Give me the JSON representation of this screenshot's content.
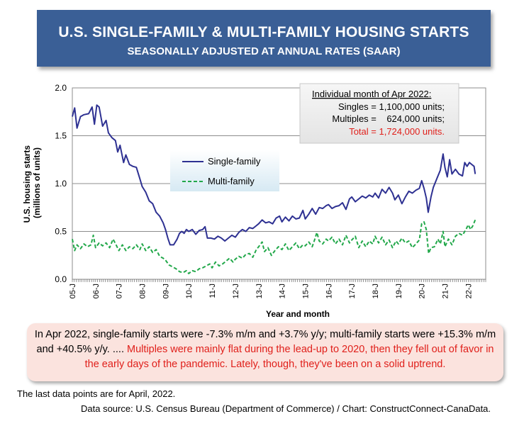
{
  "header": {
    "title": "U.S. SINGLE-FAMILY & MULTI-FAMILY HOUSING STARTS",
    "subtitle": "SEASONALLY ADJUSTED AT ANNUAL RATES (SAAR)"
  },
  "info_box": {
    "heading": "Individual month of Apr 2022:",
    "singles": "Singles = 1,100,000 units;",
    "multiples": "Multiples =    624,000 units;",
    "total": "Total = 1,724,000 units."
  },
  "note": {
    "black": "In Apr 2022, single-family starts were -7.3% m/m and +3.7% y/y; multi-family starts were +15.3% m/m and +40.5% y/y. ....",
    "red": "Multiples were mainly flat during the lead-up to 2020, then they fell out of favor in the early days of the pandemic. Lately, though, they've been on a solid uptrend."
  },
  "footer": {
    "last_points": "The last data points are for April, 2022.",
    "source": "Data source: U.S. Census Bureau (Department of Commerce) / Chart: ConstructConnect-CanaData."
  },
  "colors": {
    "title_bg": "#3a5f96",
    "single": "#2e3192",
    "multi": "#22a84a",
    "note_bg": "#fbe3de",
    "red": "#e0201b"
  },
  "chart_data": {
    "type": "line",
    "xlabel": "Year and month",
    "ylabel": "U.S. housing starts (millions of units)",
    "ylim": [
      0,
      2.0
    ],
    "yticks": [
      "0.0",
      "0.5",
      "1.0",
      "1.5",
      "2.0"
    ],
    "xticks": [
      "05-J",
      "06-J",
      "07-J",
      "08-J",
      "09-J",
      "10-J",
      "11-J",
      "12-J",
      "13-J",
      "14-J",
      "15-J",
      "16-J",
      "17-J",
      "18-J",
      "19-J",
      "20-J",
      "21-J",
      "22-J"
    ],
    "grid": true,
    "legend_position": "center-left",
    "series": [
      {
        "name": "Single-family",
        "style": "solid",
        "points": [
          [
            2005.0,
            1.7
          ],
          [
            2005.1,
            1.79
          ],
          [
            2005.2,
            1.58
          ],
          [
            2005.35,
            1.7
          ],
          [
            2005.5,
            1.72
          ],
          [
            2005.7,
            1.73
          ],
          [
            2005.85,
            1.8
          ],
          [
            2005.95,
            1.62
          ],
          [
            2006.05,
            1.82
          ],
          [
            2006.15,
            1.8
          ],
          [
            2006.3,
            1.6
          ],
          [
            2006.45,
            1.66
          ],
          [
            2006.55,
            1.53
          ],
          [
            2006.7,
            1.48
          ],
          [
            2006.85,
            1.45
          ],
          [
            2006.95,
            1.33
          ],
          [
            2007.05,
            1.4
          ],
          [
            2007.2,
            1.22
          ],
          [
            2007.3,
            1.3
          ],
          [
            2007.45,
            1.2
          ],
          [
            2007.6,
            1.18
          ],
          [
            2007.75,
            1.17
          ],
          [
            2007.9,
            1.05
          ],
          [
            2008.0,
            0.97
          ],
          [
            2008.15,
            0.91
          ],
          [
            2008.3,
            0.82
          ],
          [
            2008.45,
            0.79
          ],
          [
            2008.6,
            0.7
          ],
          [
            2008.75,
            0.66
          ],
          [
            2008.9,
            0.59
          ],
          [
            2009.0,
            0.52
          ],
          [
            2009.1,
            0.43
          ],
          [
            2009.2,
            0.36
          ],
          [
            2009.35,
            0.36
          ],
          [
            2009.5,
            0.42
          ],
          [
            2009.6,
            0.48
          ],
          [
            2009.7,
            0.5
          ],
          [
            2009.8,
            0.48
          ],
          [
            2009.9,
            0.52
          ],
          [
            2010.0,
            0.5
          ],
          [
            2010.15,
            0.52
          ],
          [
            2010.3,
            0.47
          ],
          [
            2010.45,
            0.51
          ],
          [
            2010.6,
            0.52
          ],
          [
            2010.7,
            0.55
          ],
          [
            2010.8,
            0.43
          ],
          [
            2010.95,
            0.43
          ],
          [
            2011.1,
            0.42
          ],
          [
            2011.25,
            0.45
          ],
          [
            2011.4,
            0.43
          ],
          [
            2011.55,
            0.4
          ],
          [
            2011.7,
            0.43
          ],
          [
            2011.85,
            0.46
          ],
          [
            2012.0,
            0.44
          ],
          [
            2012.15,
            0.49
          ],
          [
            2012.3,
            0.52
          ],
          [
            2012.45,
            0.5
          ],
          [
            2012.6,
            0.54
          ],
          [
            2012.75,
            0.53
          ],
          [
            2012.9,
            0.56
          ],
          [
            2013.0,
            0.58
          ],
          [
            2013.15,
            0.62
          ],
          [
            2013.3,
            0.59
          ],
          [
            2013.45,
            0.6
          ],
          [
            2013.6,
            0.58
          ],
          [
            2013.75,
            0.64
          ],
          [
            2013.9,
            0.66
          ],
          [
            2014.0,
            0.6
          ],
          [
            2014.15,
            0.65
          ],
          [
            2014.3,
            0.61
          ],
          [
            2014.45,
            0.66
          ],
          [
            2014.6,
            0.63
          ],
          [
            2014.75,
            0.64
          ],
          [
            2014.9,
            0.72
          ],
          [
            2015.0,
            0.63
          ],
          [
            2015.15,
            0.68
          ],
          [
            2015.3,
            0.74
          ],
          [
            2015.45,
            0.68
          ],
          [
            2015.6,
            0.75
          ],
          [
            2015.75,
            0.74
          ],
          [
            2015.9,
            0.77
          ],
          [
            2016.0,
            0.78
          ],
          [
            2016.15,
            0.74
          ],
          [
            2016.3,
            0.76
          ],
          [
            2016.45,
            0.77
          ],
          [
            2016.6,
            0.8
          ],
          [
            2016.75,
            0.73
          ],
          [
            2016.9,
            0.84
          ],
          [
            2017.0,
            0.86
          ],
          [
            2017.15,
            0.81
          ],
          [
            2017.3,
            0.84
          ],
          [
            2017.45,
            0.87
          ],
          [
            2017.6,
            0.85
          ],
          [
            2017.75,
            0.88
          ],
          [
            2017.9,
            0.86
          ],
          [
            2018.0,
            0.9
          ],
          [
            2018.15,
            0.85
          ],
          [
            2018.3,
            0.94
          ],
          [
            2018.45,
            0.9
          ],
          [
            2018.6,
            0.96
          ],
          [
            2018.75,
            0.9
          ],
          [
            2018.85,
            0.83
          ],
          [
            2019.0,
            0.88
          ],
          [
            2019.15,
            0.79
          ],
          [
            2019.3,
            0.86
          ],
          [
            2019.45,
            0.92
          ],
          [
            2019.6,
            0.9
          ],
          [
            2019.75,
            0.93
          ],
          [
            2019.9,
            0.95
          ],
          [
            2020.0,
            1.03
          ],
          [
            2020.1,
            0.95
          ],
          [
            2020.2,
            0.85
          ],
          [
            2020.28,
            0.7
          ],
          [
            2020.4,
            0.86
          ],
          [
            2020.5,
            0.96
          ],
          [
            2020.65,
            1.05
          ],
          [
            2020.8,
            1.14
          ],
          [
            2020.92,
            1.31
          ],
          [
            2021.0,
            1.17
          ],
          [
            2021.1,
            1.07
          ],
          [
            2021.2,
            1.25
          ],
          [
            2021.3,
            1.1
          ],
          [
            2021.45,
            1.15
          ],
          [
            2021.6,
            1.1
          ],
          [
            2021.75,
            1.08
          ],
          [
            2021.85,
            1.22
          ],
          [
            2021.95,
            1.18
          ],
          [
            2022.05,
            1.22
          ],
          [
            2022.15,
            1.2
          ],
          [
            2022.25,
            1.18
          ],
          [
            2022.3,
            1.1
          ]
        ]
      },
      {
        "name": "Multi-family",
        "style": "dashed",
        "points": [
          [
            2005.0,
            0.42
          ],
          [
            2005.1,
            0.3
          ],
          [
            2005.2,
            0.36
          ],
          [
            2005.35,
            0.32
          ],
          [
            2005.5,
            0.37
          ],
          [
            2005.65,
            0.34
          ],
          [
            2005.8,
            0.36
          ],
          [
            2005.9,
            0.46
          ],
          [
            2006.0,
            0.33
          ],
          [
            2006.15,
            0.38
          ],
          [
            2006.3,
            0.35
          ],
          [
            2006.45,
            0.38
          ],
          [
            2006.6,
            0.33
          ],
          [
            2006.75,
            0.42
          ],
          [
            2006.9,
            0.35
          ],
          [
            2007.0,
            0.3
          ],
          [
            2007.15,
            0.36
          ],
          [
            2007.3,
            0.3
          ],
          [
            2007.45,
            0.34
          ],
          [
            2007.6,
            0.32
          ],
          [
            2007.75,
            0.36
          ],
          [
            2007.9,
            0.31
          ],
          [
            2008.0,
            0.37
          ],
          [
            2008.15,
            0.3
          ],
          [
            2008.3,
            0.34
          ],
          [
            2008.45,
            0.28
          ],
          [
            2008.6,
            0.31
          ],
          [
            2008.75,
            0.24
          ],
          [
            2008.9,
            0.22
          ],
          [
            2009.0,
            0.2
          ],
          [
            2009.15,
            0.15
          ],
          [
            2009.3,
            0.13
          ],
          [
            2009.45,
            0.11
          ],
          [
            2009.6,
            0.08
          ],
          [
            2009.75,
            0.07
          ],
          [
            2009.9,
            0.09
          ],
          [
            2010.0,
            0.06
          ],
          [
            2010.15,
            0.09
          ],
          [
            2010.3,
            0.08
          ],
          [
            2010.45,
            0.11
          ],
          [
            2010.6,
            0.12
          ],
          [
            2010.75,
            0.14
          ],
          [
            2010.9,
            0.16
          ],
          [
            2011.0,
            0.12
          ],
          [
            2011.15,
            0.18
          ],
          [
            2011.3,
            0.14
          ],
          [
            2011.45,
            0.16
          ],
          [
            2011.6,
            0.19
          ],
          [
            2011.75,
            0.22
          ],
          [
            2011.9,
            0.18
          ],
          [
            2012.0,
            0.21
          ],
          [
            2012.15,
            0.24
          ],
          [
            2012.3,
            0.22
          ],
          [
            2012.45,
            0.26
          ],
          [
            2012.6,
            0.27
          ],
          [
            2012.75,
            0.23
          ],
          [
            2012.9,
            0.31
          ],
          [
            2013.0,
            0.34
          ],
          [
            2013.15,
            0.39
          ],
          [
            2013.25,
            0.29
          ],
          [
            2013.4,
            0.33
          ],
          [
            2013.55,
            0.25
          ],
          [
            2013.7,
            0.3
          ],
          [
            2013.85,
            0.34
          ],
          [
            2014.0,
            0.31
          ],
          [
            2014.15,
            0.37
          ],
          [
            2014.3,
            0.3
          ],
          [
            2014.45,
            0.34
          ],
          [
            2014.6,
            0.38
          ],
          [
            2014.75,
            0.32
          ],
          [
            2014.9,
            0.36
          ],
          [
            2015.0,
            0.35
          ],
          [
            2015.15,
            0.39
          ],
          [
            2015.3,
            0.34
          ],
          [
            2015.4,
            0.41
          ],
          [
            2015.5,
            0.49
          ],
          [
            2015.6,
            0.4
          ],
          [
            2015.75,
            0.37
          ],
          [
            2015.9,
            0.42
          ],
          [
            2016.0,
            0.4
          ],
          [
            2016.15,
            0.44
          ],
          [
            2016.3,
            0.37
          ],
          [
            2016.45,
            0.42
          ],
          [
            2016.6,
            0.36
          ],
          [
            2016.75,
            0.46
          ],
          [
            2016.9,
            0.38
          ],
          [
            2017.0,
            0.41
          ],
          [
            2017.15,
            0.45
          ],
          [
            2017.3,
            0.33
          ],
          [
            2017.45,
            0.4
          ],
          [
            2017.6,
            0.34
          ],
          [
            2017.75,
            0.4
          ],
          [
            2017.9,
            0.37
          ],
          [
            2018.0,
            0.45
          ],
          [
            2018.15,
            0.38
          ],
          [
            2018.3,
            0.44
          ],
          [
            2018.45,
            0.36
          ],
          [
            2018.6,
            0.41
          ],
          [
            2018.75,
            0.33
          ],
          [
            2018.9,
            0.4
          ],
          [
            2019.0,
            0.37
          ],
          [
            2019.15,
            0.43
          ],
          [
            2019.3,
            0.38
          ],
          [
            2019.45,
            0.4
          ],
          [
            2019.6,
            0.33
          ],
          [
            2019.75,
            0.37
          ],
          [
            2019.9,
            0.41
          ],
          [
            2020.0,
            0.58
          ],
          [
            2020.1,
            0.6
          ],
          [
            2020.2,
            0.52
          ],
          [
            2020.3,
            0.27
          ],
          [
            2020.4,
            0.33
          ],
          [
            2020.55,
            0.34
          ],
          [
            2020.7,
            0.42
          ],
          [
            2020.8,
            0.37
          ],
          [
            2020.92,
            0.5
          ],
          [
            2021.0,
            0.34
          ],
          [
            2021.15,
            0.42
          ],
          [
            2021.3,
            0.36
          ],
          [
            2021.45,
            0.45
          ],
          [
            2021.6,
            0.48
          ],
          [
            2021.75,
            0.46
          ],
          [
            2021.9,
            0.52
          ],
          [
            2022.0,
            0.57
          ],
          [
            2022.1,
            0.52
          ],
          [
            2022.2,
            0.56
          ],
          [
            2022.3,
            0.62
          ]
        ]
      }
    ]
  }
}
